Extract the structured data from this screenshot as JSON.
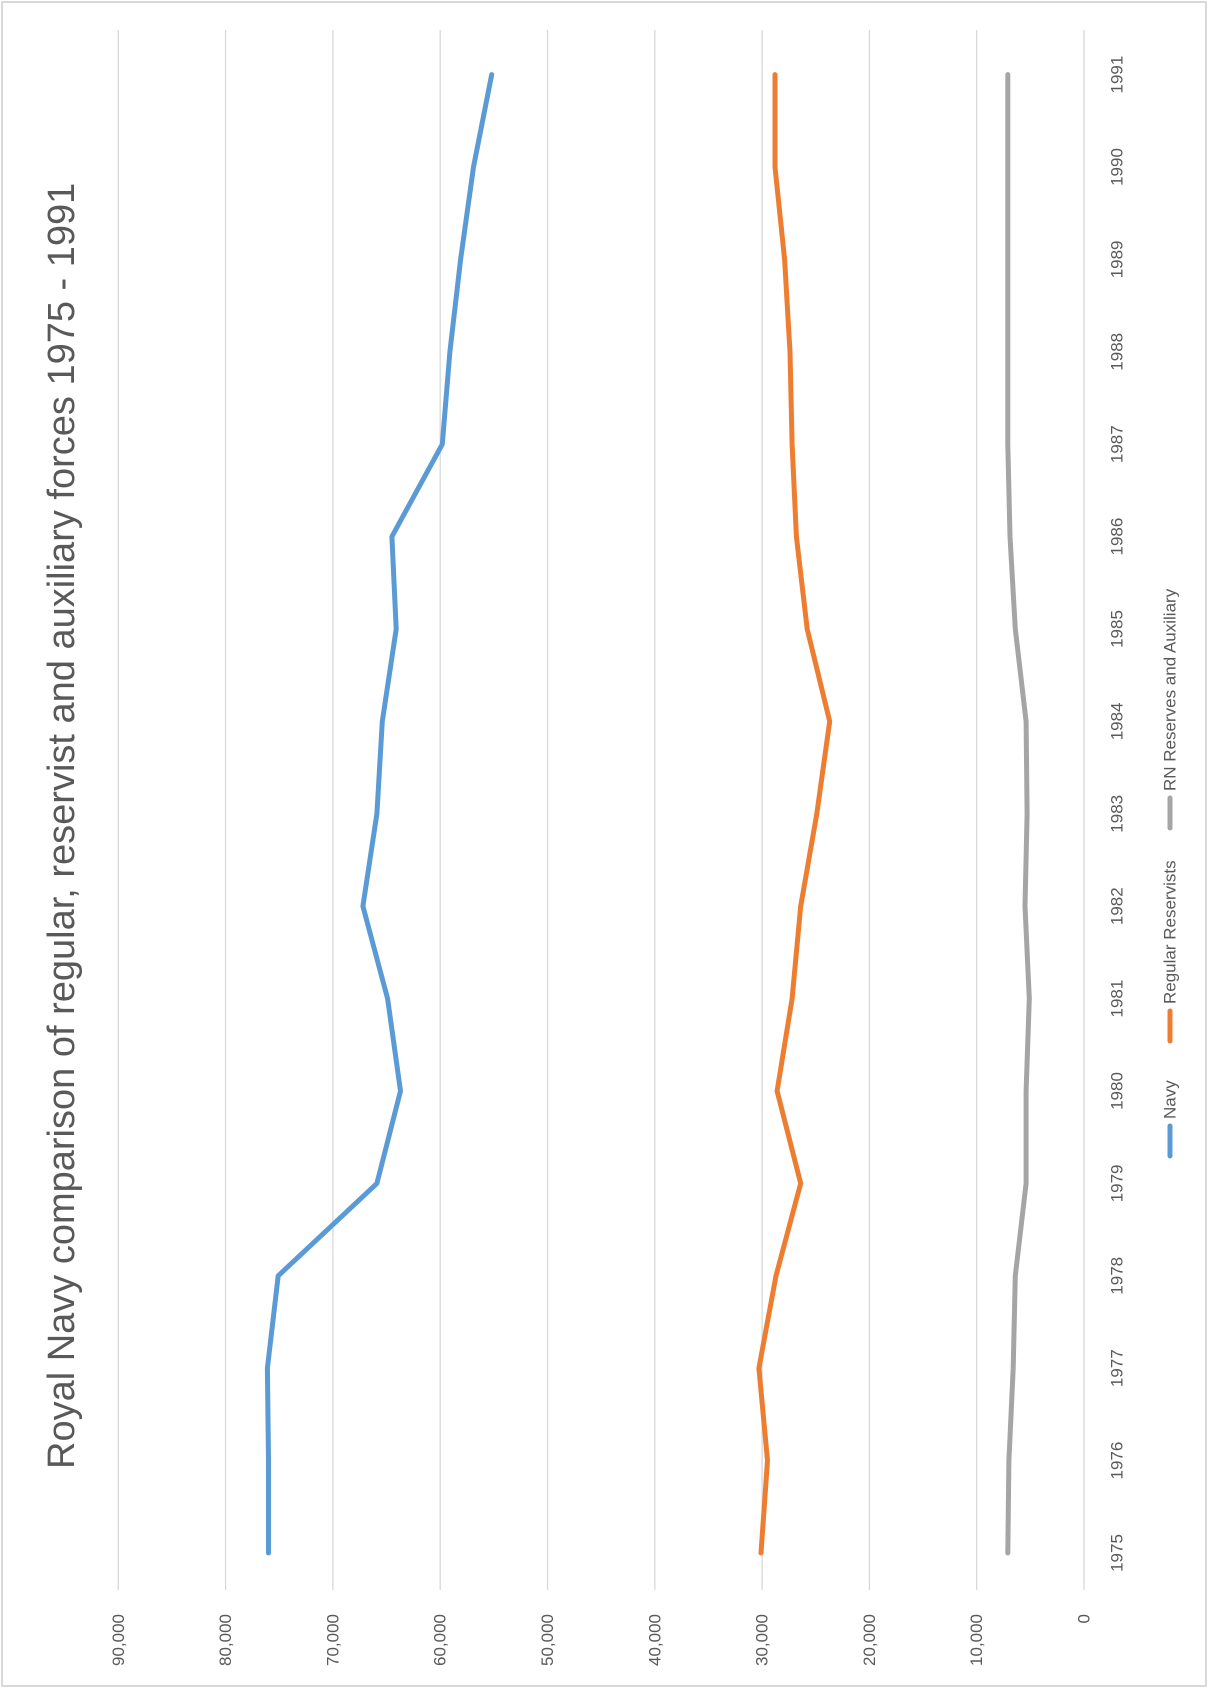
{
  "chart_data": {
    "type": "line",
    "orientation": "rotated-90-clockwise",
    "title": "Royal Navy comparison of regular, reservist and auxiliary forces 1975 - 1991",
    "xlabel": "",
    "ylabel": "",
    "categories": [
      "1975",
      "1976",
      "1977",
      "1978",
      "1979",
      "1980",
      "1981",
      "1982",
      "1983",
      "1984",
      "1985",
      "1986",
      "1987",
      "1988",
      "1989",
      "1990",
      "1991"
    ],
    "ylim": [
      0,
      90000
    ],
    "y_ticks": [
      0,
      10000,
      20000,
      30000,
      40000,
      50000,
      60000,
      70000,
      80000,
      90000
    ],
    "y_tick_labels": [
      "0",
      "10,000",
      "20,000",
      "30,000",
      "40,000",
      "50,000",
      "60,000",
      "70,000",
      "80,000",
      "90,000"
    ],
    "grid": true,
    "legend_position": "bottom",
    "series": [
      {
        "name": "Navy",
        "color": "#5b9bd5",
        "values": [
          76000,
          76000,
          76100,
          75100,
          65900,
          63700,
          64900,
          67200,
          65900,
          65400,
          64100,
          64500,
          59800,
          59100,
          58100,
          56900,
          55200
        ]
      },
      {
        "name": "Regular Reservists",
        "color": "#ed7d31",
        "values": [
          30100,
          29500,
          30300,
          28700,
          26400,
          28600,
          27200,
          26400,
          24900,
          23700,
          25800,
          26800,
          27200,
          27400,
          27900,
          28800,
          28800
        ]
      },
      {
        "name": "RN Reserves and Auxiliary",
        "color": "#a5a5a5",
        "values": [
          7100,
          7000,
          6600,
          6400,
          5400,
          5400,
          5100,
          5500,
          5300,
          5400,
          6400,
          6900,
          7100,
          7100,
          7100,
          7100,
          7100
        ]
      }
    ]
  }
}
